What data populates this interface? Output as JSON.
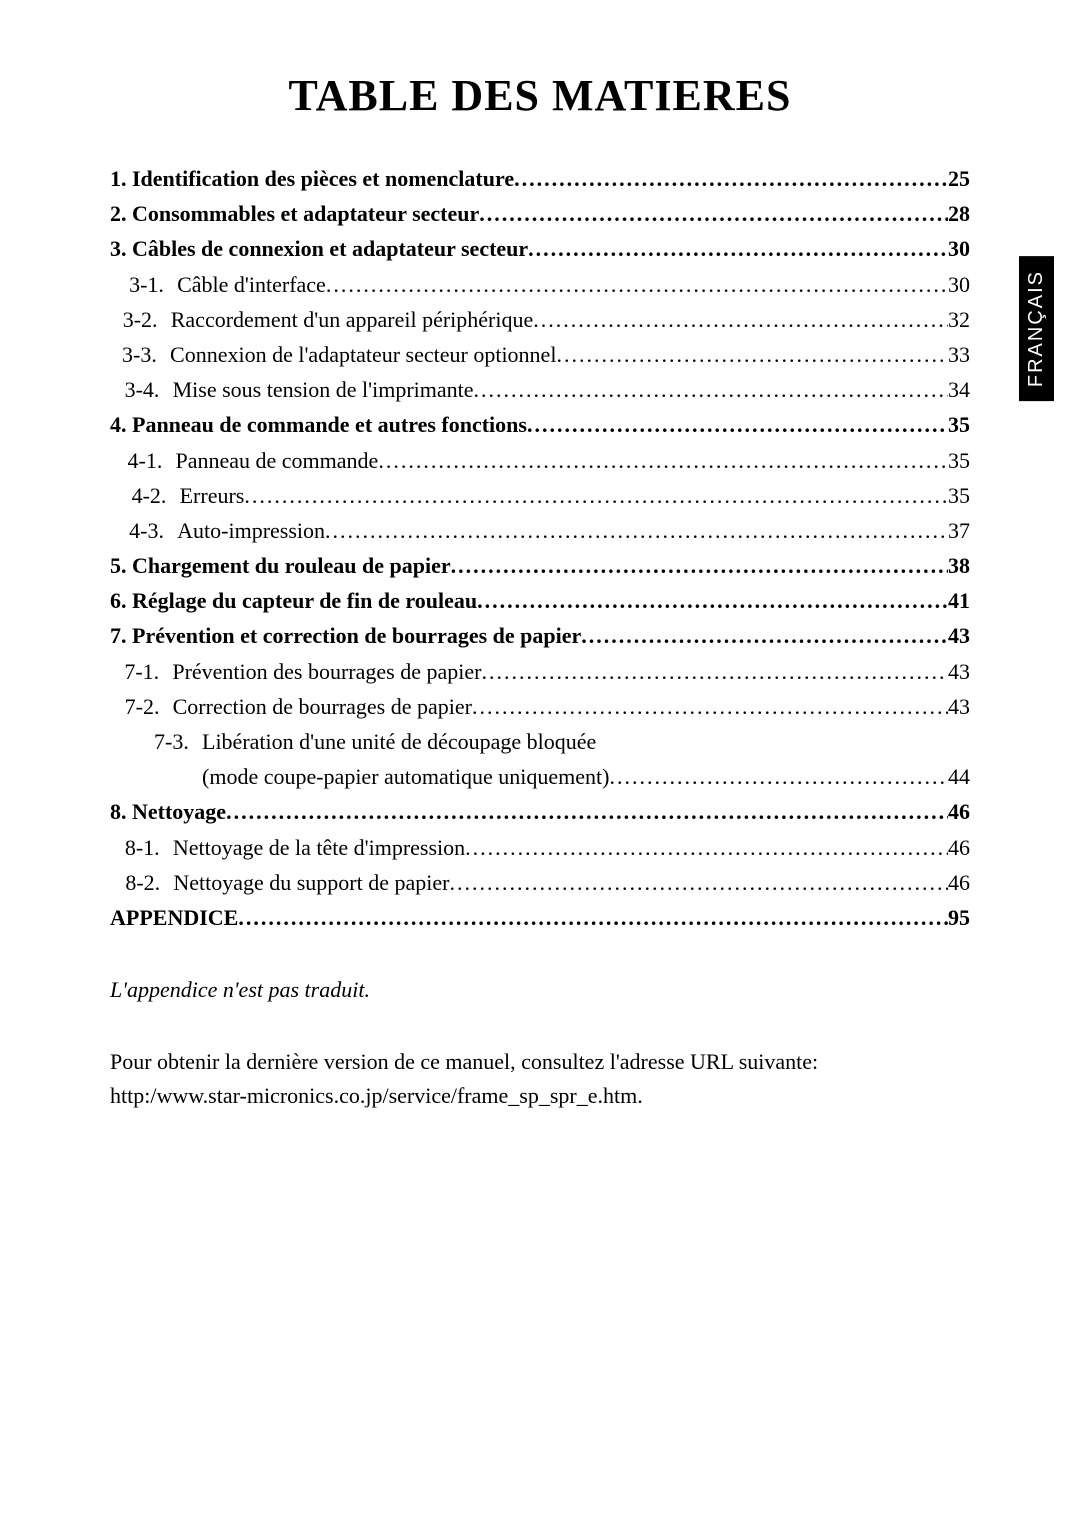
{
  "title": "TABLE DES MATIERES",
  "side_tab": "FRANÇAIS",
  "toc": [
    {
      "bold": true,
      "label": "1. Identification des pièces et nomenclature",
      "page": "25"
    },
    {
      "bold": true,
      "label": "2. Consommables et adaptateur secteur",
      "page": "28"
    },
    {
      "bold": true,
      "label": "3. Câbles de connexion et adaptateur secteur",
      "page": "30"
    },
    {
      "bold": false,
      "sub": true,
      "num": "3-1.",
      "label": "Câble d'interface",
      "page": "30"
    },
    {
      "bold": false,
      "sub": true,
      "num": "3-2.",
      "label": "Raccordement d'un appareil périphérique",
      "page": "32"
    },
    {
      "bold": false,
      "sub": true,
      "num": "3-3.",
      "label": "Connexion de l'adaptateur secteur optionnel",
      "page": "33"
    },
    {
      "bold": false,
      "sub": true,
      "num": "3-4.",
      "label": "Mise sous tension de l'imprimante",
      "page": "34"
    },
    {
      "bold": true,
      "label": "4. Panneau de commande et autres fonctions",
      "page": "35"
    },
    {
      "bold": false,
      "sub": true,
      "num": "4-1.",
      "label": "Panneau de commande",
      "page": "35"
    },
    {
      "bold": false,
      "sub": true,
      "num": "4-2.",
      "label": "Erreurs",
      "page": "35"
    },
    {
      "bold": false,
      "sub": true,
      "num": "4-3.",
      "label": "Auto-impression",
      "page": "37"
    },
    {
      "bold": true,
      "label": "5. Chargement du rouleau de papier",
      "page": "38"
    },
    {
      "bold": true,
      "label": "6. Réglage du capteur de fin de rouleau",
      "page": "41"
    },
    {
      "bold": true,
      "label": "7. Prévention et correction de bourrages de papier",
      "page": "43"
    },
    {
      "bold": false,
      "sub": true,
      "num": "7-1.",
      "label": "Prévention des bourrages de papier",
      "page": "43"
    },
    {
      "bold": false,
      "sub": true,
      "num": "7-2.",
      "label": "Correction de bourrages de papier",
      "page": "43"
    },
    {
      "bold": false,
      "sub": true,
      "num": "7-3.",
      "label": "Libération d'une unité de découpage bloquée",
      "no_dots": true
    },
    {
      "bold": false,
      "cont": true,
      "label": "(mode coupe-papier automatique uniquement)",
      "page": "44"
    },
    {
      "bold": true,
      "label": "8. Nettoyage",
      "page": "46"
    },
    {
      "bold": false,
      "sub": true,
      "num": "8-1.",
      "label": "Nettoyage de la tête d'impression",
      "page": "46"
    },
    {
      "bold": false,
      "sub": true,
      "num": "8-2.",
      "label": "Nettoyage du support de papier",
      "page": "46"
    },
    {
      "bold": true,
      "label": "APPENDICE",
      "page": "95"
    }
  ],
  "note_italic": "L'appendice n'est pas traduit.",
  "note_para_line1": "Pour obtenir la dernière version de ce manuel, consultez l'adresse URL suivante:",
  "note_para_line2": "http:/www.star-micronics.co.jp/service/frame_sp_spr_e.htm."
}
